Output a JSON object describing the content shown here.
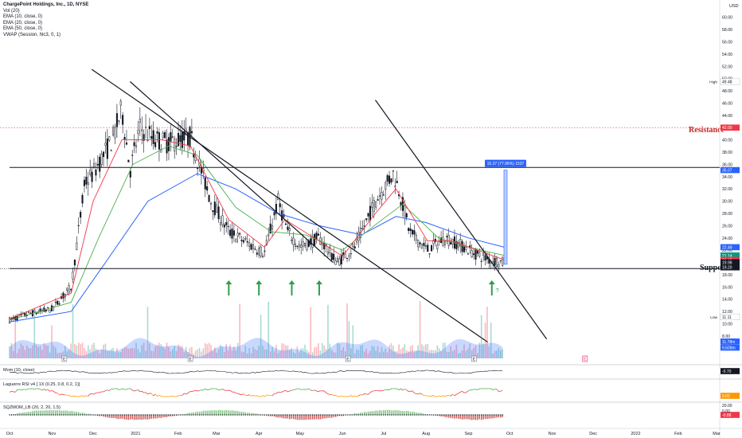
{
  "chart_data": {
    "type": "candlestick",
    "title": "ChargePoint Holdings, Inc., 1D, NYSE",
    "currency": "USD",
    "studies": [
      "Vol (20)",
      "EMA (10, close, 0)",
      "EMA (20, close, 0)",
      "EMA (50, close, 0)",
      "VWAP (Session, hlc3, 0, 1)"
    ],
    "x_ticks": [
      "Oct",
      "Nov",
      "Dec",
      "2021",
      "Feb",
      "Mar",
      "Apr",
      "May",
      "Jun",
      "Jul",
      "Aug",
      "Sep",
      "Oct",
      "Nov",
      "Dec",
      "2022",
      "Feb",
      "Mar"
    ],
    "y_ticks": [
      "60.00",
      "58.00",
      "56.00",
      "54.00",
      "52.00",
      "50.00",
      "48.00",
      "46.00",
      "44.00",
      "42.00",
      "40.00",
      "38.00",
      "36.00",
      "34.00",
      "32.00",
      "30.00",
      "28.00",
      "26.00",
      "24.00",
      "22.00",
      "20.00",
      "18.00",
      "16.00",
      "14.00",
      "12.00",
      "10.00",
      "8.00",
      "6.00"
    ],
    "ylim": [
      5,
      61
    ],
    "price_path": [
      [
        "2020-10-01",
        10.6
      ],
      [
        "2020-10-15",
        11.6
      ],
      [
        "2020-11-01",
        12.4
      ],
      [
        "2020-11-15",
        16.0
      ],
      [
        "2020-11-25",
        33.0
      ],
      [
        "2020-12-01",
        34.5
      ],
      [
        "2020-12-15",
        40.0
      ],
      [
        "2020-12-22",
        45.0
      ],
      [
        "2020-12-28",
        35.0
      ],
      [
        "2021-01-04",
        42.0
      ],
      [
        "2021-01-15",
        40.0
      ],
      [
        "2021-01-25",
        39.5
      ],
      [
        "2021-02-10",
        40.5
      ],
      [
        "2021-02-25",
        30.0
      ],
      [
        "2021-03-10",
        25.0
      ],
      [
        "2021-03-25",
        23.0
      ],
      [
        "2021-04-05",
        21.5
      ],
      [
        "2021-04-15",
        30.0
      ],
      [
        "2021-04-22",
        25.0
      ],
      [
        "2021-05-01",
        22.5
      ],
      [
        "2021-05-15",
        24.0
      ],
      [
        "2021-05-28",
        20.0
      ],
      [
        "2021-06-10",
        22.5
      ],
      [
        "2021-06-25",
        30.0
      ],
      [
        "2021-07-08",
        34.5
      ],
      [
        "2021-07-12",
        32.0
      ],
      [
        "2021-07-20",
        25.0
      ],
      [
        "2021-08-02",
        22.0
      ],
      [
        "2021-08-15",
        24.0
      ],
      [
        "2021-08-25",
        23.0
      ],
      [
        "2021-09-05",
        21.5
      ],
      [
        "2021-09-15",
        20.5
      ],
      [
        "2021-09-27",
        19.98
      ]
    ],
    "ema_10_path": [
      [
        "2020-10-01",
        10.8
      ],
      [
        "2020-11-15",
        15.0
      ],
      [
        "2020-12-01",
        30.0
      ],
      [
        "2020-12-22",
        40.0
      ],
      [
        "2021-01-20",
        40.0
      ],
      [
        "2021-02-10",
        39.0
      ],
      [
        "2021-03-10",
        27.0
      ],
      [
        "2021-04-05",
        22.5
      ],
      [
        "2021-04-20",
        27.0
      ],
      [
        "2021-05-15",
        23.5
      ],
      [
        "2021-06-01",
        21.0
      ],
      [
        "2021-06-25",
        28.0
      ],
      [
        "2021-07-10",
        32.0
      ],
      [
        "2021-08-02",
        23.5
      ],
      [
        "2021-08-20",
        23.5
      ],
      [
        "2021-09-27",
        20.42
      ]
    ],
    "ema_20_path": [
      [
        "2020-10-01",
        10.6
      ],
      [
        "2020-11-15",
        13.5
      ],
      [
        "2020-12-05",
        24.0
      ],
      [
        "2020-12-30",
        36.0
      ],
      [
        "2021-01-25",
        39.0
      ],
      [
        "2021-02-15",
        37.5
      ],
      [
        "2021-03-15",
        29.0
      ],
      [
        "2021-04-10",
        25.0
      ],
      [
        "2021-05-05",
        24.5
      ],
      [
        "2021-06-01",
        22.0
      ],
      [
        "2021-06-30",
        27.0
      ],
      [
        "2021-07-15",
        29.5
      ],
      [
        "2021-08-10",
        24.0
      ],
      [
        "2021-09-01",
        22.5
      ],
      [
        "2021-09-27",
        21.14
      ]
    ],
    "ema_50_path": [
      [
        "2020-10-01",
        10.3
      ],
      [
        "2020-11-15",
        12.0
      ],
      [
        "2020-12-10",
        20.0
      ],
      [
        "2021-01-10",
        30.0
      ],
      [
        "2021-02-15",
        34.5
      ],
      [
        "2021-03-15",
        32.0
      ],
      [
        "2021-04-15",
        28.0
      ],
      [
        "2021-05-15",
        26.0
      ],
      [
        "2021-06-15",
        24.5
      ],
      [
        "2021-07-10",
        27.5
      ],
      [
        "2021-08-01",
        26.5
      ],
      [
        "2021-09-01",
        24.0
      ],
      [
        "2021-09-27",
        22.49
      ]
    ],
    "lines": {
      "resistance": {
        "label": "Resistance",
        "value": 42.0
      },
      "horizontal": {
        "value": 35.5
      },
      "support": {
        "label": "Support",
        "value": 19.0
      },
      "trend_1": [
        [
          "2020-11-30",
          51.5
        ],
        [
          "2021-09-15",
          7.0
        ]
      ],
      "trend_1b": [
        [
          "2020-12-28",
          49.5
        ],
        [
          "2021-05-25",
          20.0
        ]
      ],
      "trend_2": [
        [
          "2021-06-25",
          46.5
        ],
        [
          "2021-10-28",
          7.5
        ]
      ]
    },
    "arrows": {
      "dates": [
        "2021-03-10",
        "2021-04-01",
        "2021-04-25",
        "2021-05-15",
        "2021-09-18"
      ],
      "question_label": "?"
    },
    "measure": {
      "label": "15.37 (77.96%) 1537",
      "from": 19.7,
      "to": 35.07,
      "date": "2021-09-28"
    },
    "price_labels": [
      {
        "text": "High",
        "value": 49.48,
        "price": "49.48",
        "color": "#ffffff",
        "text_color": "#131722"
      },
      {
        "text": "",
        "value": 42.0,
        "price": "42.00",
        "color": "#f23645",
        "text_color": "#ffffff"
      },
      {
        "text": "",
        "value": 35.07,
        "price": "35.07",
        "color": "#2962ff",
        "text_color": "#ffffff"
      },
      {
        "text": "",
        "value": 22.49,
        "price": "22.49",
        "color": "#2962ff",
        "text_color": "#ffffff"
      },
      {
        "text": "",
        "value": 21.14,
        "price": "21.14",
        "color": "#089981",
        "text_color": "#ffffff"
      },
      {
        "text": "",
        "value": 20.42,
        "price": "20.42",
        "color": "#f23645",
        "text_color": "#ffffff"
      },
      {
        "text": "",
        "value": 20.03,
        "price": "20.03",
        "color": "#131722",
        "text_color": "#ffffff"
      },
      {
        "text": "",
        "value": 19.98,
        "price": "19.98",
        "color": "#131722",
        "text_color": "#ffffff"
      },
      {
        "text": "",
        "value": 19.2,
        "price": "19.20",
        "color": "#131722",
        "text_color": "#ffffff"
      },
      {
        "text": "Low",
        "value": 11.11,
        "price": "11.11",
        "color": "#ffffff",
        "text_color": "#131722"
      },
      {
        "text": "",
        "value": 7.1,
        "price": "11.78m",
        "color": "#2962ff",
        "text_color": "#ffffff"
      },
      {
        "text": "",
        "value": 6.1,
        "price": "9.509m",
        "color": "#2962ff",
        "text_color": "#ffffff"
      }
    ],
    "event_markers": {
      "dates": [
        "2020-11-10",
        "2021-02-10",
        "2021-06-05",
        "2021-09-05",
        "2021-11-25"
      ],
      "labels": [
        "E",
        "E",
        "E",
        "E",
        "E"
      ]
    },
    "panels": [
      {
        "name": "Mom (10, close)",
        "value": "-0.70",
        "value_color": "#131722"
      },
      {
        "name": "Laguerre RSI v4 [ 1X (0.25, 0.8, 0.2, 1)]",
        "value": "0.02",
        "value_color": "#ff9800"
      },
      {
        "name": "SQZMOM_LB (20, 2, 20, 1.5)",
        "value": "-0.88",
        "value_color": "#f23645"
      }
    ],
    "squeeze_axis": [
      "20.00",
      "0.00"
    ]
  }
}
